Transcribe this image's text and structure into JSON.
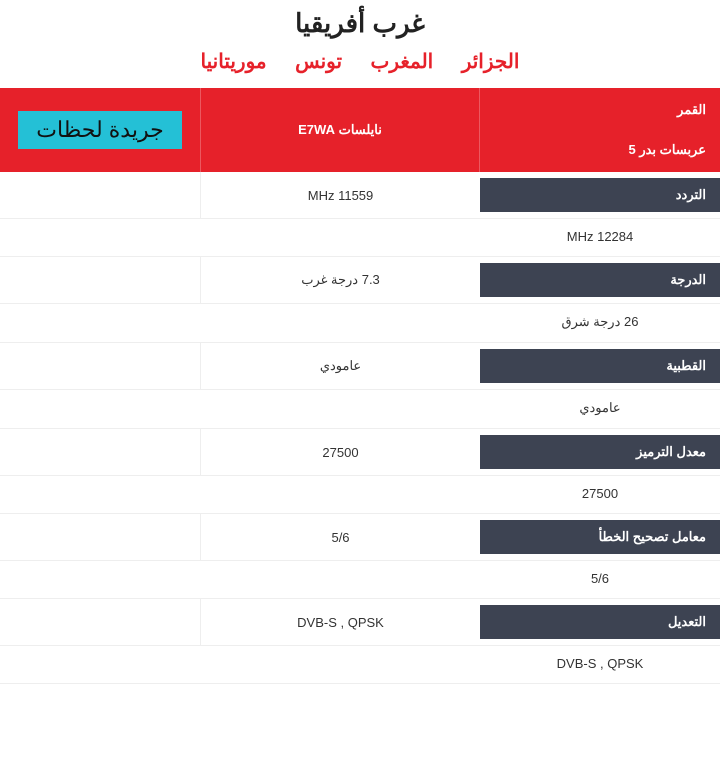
{
  "title": "غرب أفريقيا",
  "countries": [
    "الجزائر",
    "المغرب",
    "تونس",
    "موريتانيا"
  ],
  "header": {
    "satellite_label": "القمر",
    "satellite_a": "نايلسات E7WA",
    "satellite_b": "عربسات بدر 5",
    "stamp": "جريدة لحظات"
  },
  "rows": [
    {
      "label": "التردد",
      "value_a": "11559 MHz",
      "value_b": "12284 MHz"
    },
    {
      "label": "الدرجة",
      "value_a": "7.3 درجة غرب",
      "value_b": "26 درجة شرق"
    },
    {
      "label": "القطبية",
      "value_a": "عامودي",
      "value_b": "عامودي"
    },
    {
      "label": "معدل الترميز",
      "value_a": "27500",
      "value_b": "27500"
    },
    {
      "label": "معامل تصحيح الخطأ",
      "value_a": "5/6",
      "value_b": "5/6"
    },
    {
      "label": "التعديل",
      "value_a": "DVB-S , QPSK",
      "value_b": "DVB-S , QPSK"
    }
  ],
  "colors": {
    "accent": "#e6212a",
    "label_bg": "#3d4352",
    "stamp_bg": "#24c0d6"
  }
}
